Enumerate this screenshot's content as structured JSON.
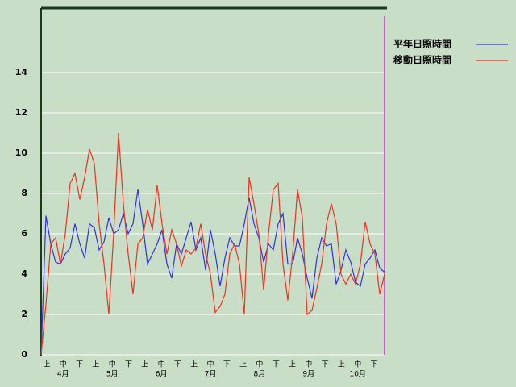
{
  "chart_data": {
    "type": "line",
    "ylim": [
      0,
      17.2
    ],
    "yticks": [
      0,
      2,
      4,
      6,
      8,
      10,
      12,
      14
    ],
    "grid": true,
    "legend": "top-right",
    "dekad_labels": [
      "上",
      "中",
      "下",
      "上",
      "中",
      "下",
      "上",
      "中",
      "下",
      "上",
      "中",
      "下",
      "上",
      "中",
      "下",
      "上",
      "中",
      "下",
      "上",
      "中",
      "下"
    ],
    "month_labels": [
      "4月",
      "5月",
      "6月",
      "7月",
      "8月",
      "9月",
      "10月"
    ],
    "series": [
      {
        "name": "平年日照時間",
        "color": "#3333dd",
        "values": [
          0,
          6.9,
          5.5,
          4.6,
          4.5,
          5.0,
          5.3,
          6.5,
          5.5,
          4.8,
          6.5,
          6.3,
          5.2,
          5.6,
          6.8,
          6.0,
          6.2,
          7.0,
          6.0,
          6.5,
          8.2,
          6.5,
          4.5,
          5.0,
          5.5,
          6.2,
          4.5,
          3.8,
          5.5,
          5.0,
          5.8,
          6.6,
          5.2,
          5.8,
          4.2,
          6.2,
          5.0,
          3.4,
          4.8,
          5.8,
          5.4,
          5.4,
          6.5,
          7.8,
          6.5,
          5.8,
          4.6,
          5.5,
          5.2,
          6.5,
          7.0,
          4.5,
          4.5,
          5.8,
          5.0,
          3.8,
          2.8,
          4.8,
          5.8,
          5.4,
          5.5,
          3.5,
          4.2,
          5.2,
          4.6,
          3.6,
          3.4,
          4.5,
          4.8,
          5.2,
          4.3,
          4.1
        ]
      },
      {
        "name": "移動日照時間",
        "color": "#ee3322",
        "values": [
          0,
          2.5,
          5.5,
          5.8,
          4.5,
          6.0,
          8.5,
          9.0,
          7.7,
          8.8,
          10.2,
          9.5,
          6.5,
          4.5,
          2.0,
          6.0,
          11.0,
          7.5,
          5.0,
          3.0,
          5.5,
          5.8,
          7.2,
          6.2,
          8.4,
          6.5,
          5.0,
          6.2,
          5.5,
          4.4,
          5.2,
          5.0,
          5.3,
          6.5,
          5.0,
          4.0,
          2.1,
          2.4,
          3.0,
          5.0,
          5.5,
          4.5,
          2.0,
          8.8,
          7.5,
          6.0,
          3.2,
          6.0,
          8.2,
          8.5,
          4.5,
          2.7,
          5.0,
          8.2,
          6.8,
          2.0,
          2.2,
          3.3,
          4.5,
          6.5,
          7.5,
          6.5,
          4.0,
          3.5,
          4.0,
          3.5,
          4.5,
          6.6,
          5.5,
          5.0,
          3.0,
          4.0
        ]
      }
    ]
  }
}
